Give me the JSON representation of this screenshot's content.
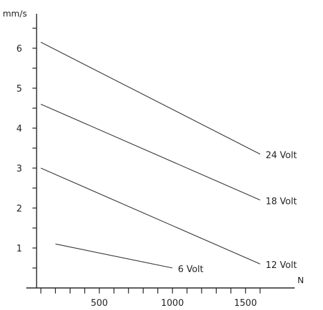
{
  "chart_data": {
    "type": "line",
    "title": "",
    "xlabel": "N",
    "ylabel": "mm/s",
    "xlim": [
      0,
      1750
    ],
    "ylim": [
      -0.5,
      6.9
    ],
    "x_ticks": [
      0,
      100,
      200,
      300,
      400,
      500,
      600,
      700,
      800,
      900,
      1000,
      1100,
      1200,
      1300,
      1400,
      1500,
      1600
    ],
    "x_tick_labels": [
      {
        "value": 500,
        "label": "500"
      },
      {
        "value": 1000,
        "label": "1000"
      },
      {
        "value": 1500,
        "label": "1500"
      }
    ],
    "y_ticks": [
      0,
      0.5,
      1,
      1.5,
      2,
      2.5,
      3,
      3.5,
      4,
      4.5,
      5,
      5.5,
      6,
      6.5
    ],
    "y_tick_labels": [
      {
        "value": 1,
        "label": "1"
      },
      {
        "value": 2,
        "label": "2"
      },
      {
        "value": 3,
        "label": "3"
      },
      {
        "value": 4,
        "label": "4"
      },
      {
        "value": 5,
        "label": "5"
      },
      {
        "value": 6,
        "label": "6"
      }
    ],
    "grid": false,
    "series": [
      {
        "name": "24 Volt",
        "x": [
          100,
          1600
        ],
        "y": [
          6.15,
          3.35
        ]
      },
      {
        "name": "18 Volt",
        "x": [
          100,
          1600
        ],
        "y": [
          4.6,
          2.2
        ]
      },
      {
        "name": "12 Volt",
        "x": [
          100,
          1600
        ],
        "y": [
          3.0,
          0.6
        ]
      },
      {
        "name": "6 Volt",
        "x": [
          200,
          1000
        ],
        "y": [
          1.1,
          0.5
        ]
      }
    ]
  }
}
